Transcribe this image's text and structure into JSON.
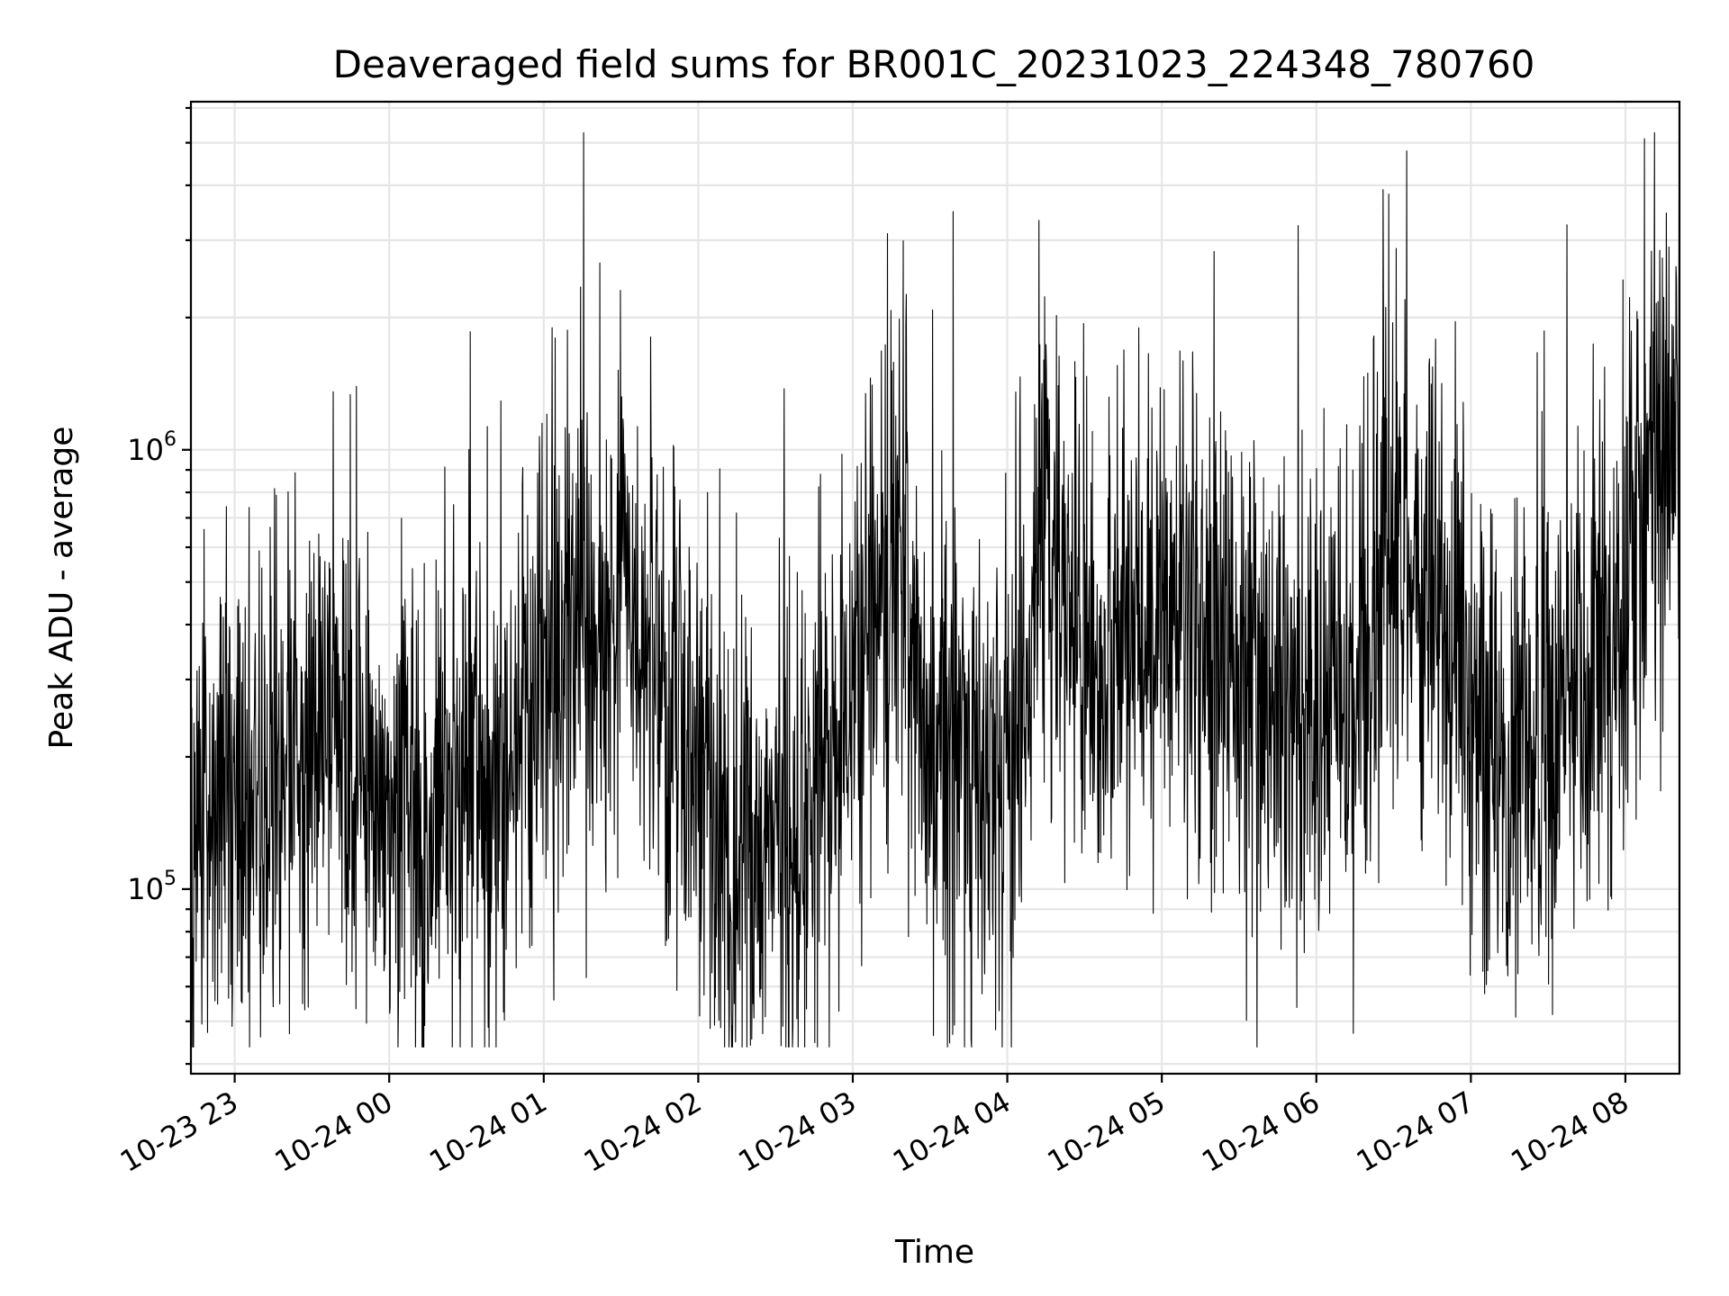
{
  "chart_data": {
    "type": "line",
    "title": "Deaveraged field sums for BR001C_20231023_224348_780760",
    "xlabel": "Time",
    "ylabel": "Peak ADU - average",
    "yscale": "log",
    "grid": true,
    "xlim": [
      "2023-10-23 22:43",
      "2023-10-24 08:21"
    ],
    "ylim": [
      38000,
      6200000
    ],
    "x_ticks": [
      {
        "t": "2023-10-23 23:00",
        "label": "10-23 23"
      },
      {
        "t": "2023-10-24 00:00",
        "label": "10-24 00"
      },
      {
        "t": "2023-10-24 01:00",
        "label": "10-24 01"
      },
      {
        "t": "2023-10-24 02:00",
        "label": "10-24 02"
      },
      {
        "t": "2023-10-24 03:00",
        "label": "10-24 03"
      },
      {
        "t": "2023-10-24 04:00",
        "label": "10-24 04"
      },
      {
        "t": "2023-10-24 05:00",
        "label": "10-24 05"
      },
      {
        "t": "2023-10-24 06:00",
        "label": "10-24 06"
      },
      {
        "t": "2023-10-24 07:00",
        "label": "10-24 07"
      },
      {
        "t": "2023-10-24 08:00",
        "label": "10-24 08"
      }
    ],
    "y_ticks": [
      {
        "v": 100000,
        "base": "10",
        "exp": "5"
      },
      {
        "v": 1000000,
        "base": "10",
        "exp": "6"
      }
    ],
    "series": [
      {
        "color": "#000000",
        "note": "dense noisy series; values below are the approximate local median at each time, the line oscillates roughly 0.3x-3x around it",
        "x": [
          "2023-10-23 22:43",
          "2023-10-23 23:00",
          "2023-10-23 23:15",
          "2023-10-23 23:30",
          "2023-10-23 23:45",
          "2023-10-24 00:00",
          "2023-10-24 00:15",
          "2023-10-24 00:30",
          "2023-10-24 00:45",
          "2023-10-24 01:00",
          "2023-10-24 01:15",
          "2023-10-24 01:30",
          "2023-10-24 01:45",
          "2023-10-24 02:00",
          "2023-10-24 02:15",
          "2023-10-24 02:30",
          "2023-10-24 02:45",
          "2023-10-24 03:00",
          "2023-10-24 03:15",
          "2023-10-24 03:30",
          "2023-10-24 03:45",
          "2023-10-24 04:00",
          "2023-10-24 04:15",
          "2023-10-24 04:30",
          "2023-10-24 04:45",
          "2023-10-24 05:00",
          "2023-10-24 05:15",
          "2023-10-24 05:30",
          "2023-10-24 05:45",
          "2023-10-24 06:00",
          "2023-10-24 06:15",
          "2023-10-24 06:30",
          "2023-10-24 06:45",
          "2023-10-24 07:00",
          "2023-10-24 07:15",
          "2023-10-24 07:30",
          "2023-10-24 07:45",
          "2023-10-24 08:00",
          "2023-10-24 08:10",
          "2023-10-24 08:21"
        ],
        "y": [
          120000,
          150000,
          170000,
          230000,
          250000,
          150000,
          150000,
          160000,
          170000,
          300000,
          550000,
          450000,
          300000,
          170000,
          130000,
          120000,
          150000,
          300000,
          550000,
          200000,
          180000,
          170000,
          700000,
          300000,
          320000,
          450000,
          380000,
          320000,
          250000,
          240000,
          280000,
          650000,
          500000,
          250000,
          170000,
          220000,
          280000,
          400000,
          800000,
          1100000
        ]
      }
    ]
  }
}
